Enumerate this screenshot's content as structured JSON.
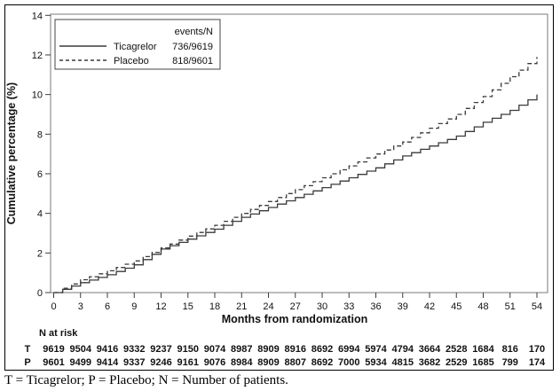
{
  "chart_data": {
    "type": "line",
    "title": "",
    "xlabel": "Months from randomization",
    "ylabel": "Cumulative percentage (%)",
    "xlim": [
      0,
      54
    ],
    "ylim": [
      0,
      14
    ],
    "x_ticks": [
      0,
      3,
      6,
      9,
      12,
      15,
      18,
      21,
      24,
      27,
      30,
      33,
      36,
      39,
      42,
      45,
      48,
      51,
      54
    ],
    "y_ticks": [
      0,
      2,
      4,
      6,
      8,
      10,
      12,
      14
    ],
    "grid": false,
    "legend": {
      "position": "top-left",
      "header": "events/N",
      "entries": [
        {
          "name": "Ticagrelor",
          "events_n": "736/9619",
          "style": "solid"
        },
        {
          "name": "Placebo",
          "events_n": "818/9601",
          "style": "dashed"
        }
      ]
    },
    "x": [
      0,
      3,
      6,
      9,
      12,
      15,
      18,
      21,
      24,
      27,
      30,
      33,
      36,
      39,
      42,
      45,
      48,
      51,
      54
    ],
    "series": [
      {
        "name": "Ticagrelor",
        "style": "solid",
        "values": [
          0,
          0.5,
          0.9,
          1.4,
          2.2,
          2.7,
          3.2,
          3.8,
          4.3,
          4.8,
          5.3,
          5.8,
          6.3,
          6.9,
          7.4,
          7.9,
          8.6,
          9.2,
          10.0
        ]
      },
      {
        "name": "Placebo",
        "style": "dashed",
        "values": [
          0,
          0.65,
          1.1,
          1.6,
          2.25,
          2.85,
          3.4,
          4.0,
          4.6,
          5.2,
          5.8,
          6.4,
          7.0,
          7.6,
          8.3,
          9.0,
          9.9,
          10.9,
          11.9
        ]
      }
    ]
  },
  "risk_table": {
    "title": "N at risk",
    "rows": [
      {
        "label": "T",
        "values": [
          9619,
          9504,
          9416,
          9332,
          9237,
          9150,
          9074,
          8987,
          8909,
          8916,
          8692,
          6994,
          5974,
          4794,
          3664,
          2528,
          1684,
          816,
          170
        ]
      },
      {
        "label": "P",
        "values": [
          9601,
          9499,
          9414,
          9337,
          9246,
          9161,
          9076,
          8984,
          8909,
          8807,
          8692,
          7000,
          5934,
          4815,
          3682,
          2529,
          1685,
          799,
          174
        ]
      }
    ]
  },
  "caption": "T = Ticagrelor; P = Placebo; N = Number of patients.",
  "colors": {
    "curve": "#3a3a3a",
    "frame": "#7a7a7a",
    "tick": "#3c3c3c",
    "text": "#111111",
    "border": "#000000"
  }
}
